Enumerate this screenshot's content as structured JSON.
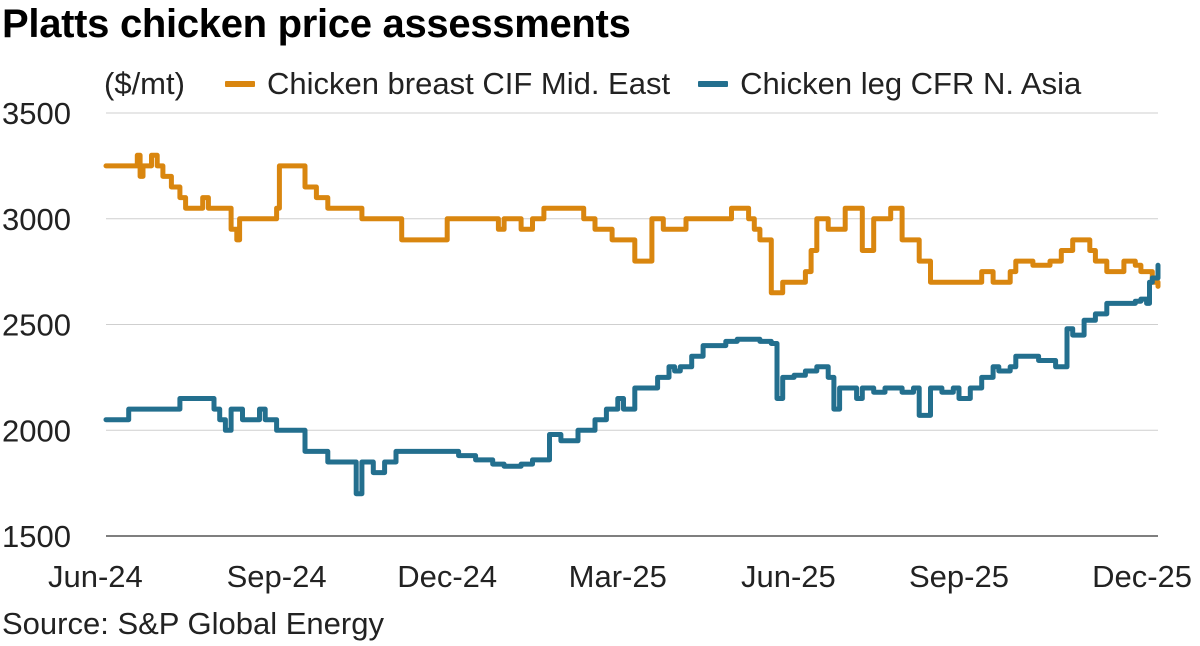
{
  "title": "Platts chicken price assessments",
  "source": "Source: S&P Global Energy",
  "chart_data": {
    "type": "line",
    "title": "Platts chicken price assessments",
    "ylabel": "($/mt)",
    "xlabel": "",
    "ylim": [
      1500,
      3500
    ],
    "yticks": [
      "3500",
      "3000",
      "2500",
      "2000",
      "1500"
    ],
    "ytick_values": [
      3500,
      3000,
      2500,
      2000,
      1500
    ],
    "xticks": [
      "Jun-24",
      "Sep-24",
      "Dec-24",
      "Mar-25",
      "Jun-25",
      "Sep-25",
      "Dec-25"
    ],
    "xtick_values": [
      0,
      3,
      6,
      9,
      12,
      15,
      18
    ],
    "grid": true,
    "legend": "top",
    "colors": {
      "breast": "#d9860f",
      "leg": "#236f8e"
    },
    "series": [
      {
        "name": "Chicken breast CIF Mid. East",
        "x": [
          0,
          0.5,
          0.55,
          0.6,
          0.65,
          0.7,
          0.8,
          0.9,
          1.0,
          1.15,
          1.3,
          1.4,
          1.5,
          1.7,
          1.8,
          2.0,
          2.2,
          2.3,
          2.35,
          2.6,
          2.9,
          3.0,
          3.05,
          3.4,
          3.5,
          3.7,
          3.9,
          4.2,
          4.5,
          5.0,
          5.2,
          5.5,
          6.0,
          6.5,
          6.8,
          6.9,
          7.0,
          7.3,
          7.5,
          7.7,
          7.9,
          8.3,
          8.4,
          8.6,
          8.9,
          9.0,
          9.3,
          9.6,
          9.8,
          10.2,
          10.7,
          11.0,
          11.3,
          11.4,
          11.5,
          11.7,
          11.8,
          11.9,
          12.3,
          12.4,
          12.5,
          12.7,
          13.0,
          13.3,
          13.5,
          13.8,
          14.0,
          14.1,
          14.3,
          14.5,
          14.8,
          15.0,
          15.4,
          15.6,
          15.9,
          16.0,
          16.3,
          16.6,
          16.8,
          17.0,
          17.2,
          17.3,
          17.4,
          17.6,
          17.9,
          18.05,
          18.1,
          18.2,
          18.4,
          18.5
        ],
        "values": [
          3250,
          3250,
          3300,
          3200,
          3250,
          3250,
          3300,
          3250,
          3200,
          3150,
          3100,
          3050,
          3050,
          3100,
          3050,
          3050,
          2950,
          2900,
          3000,
          3000,
          3000,
          3050,
          3250,
          3250,
          3150,
          3100,
          3050,
          3050,
          3000,
          3000,
          2900,
          2900,
          3000,
          3000,
          3000,
          2950,
          3000,
          2950,
          3000,
          3050,
          3050,
          3050,
          3000,
          2950,
          2900,
          2900,
          2800,
          3000,
          2950,
          3000,
          3000,
          3050,
          3000,
          2950,
          2900,
          2650,
          2650,
          2700,
          2750,
          2850,
          3000,
          2950,
          3050,
          2850,
          3000,
          3050,
          2900,
          2900,
          2800,
          2700,
          2700,
          2700,
          2750,
          2700,
          2750,
          2800,
          2780,
          2800,
          2850,
          2900,
          2900,
          2850,
          2800,
          2750,
          2800,
          2800,
          2780,
          2750,
          2700,
          2680
        ]
      },
      {
        "name": "Chicken leg CFR N. Asia",
        "x": [
          0,
          0.3,
          0.4,
          0.8,
          1.0,
          1.3,
          1.5,
          1.7,
          1.9,
          2.0,
          2.1,
          2.2,
          2.4,
          2.7,
          2.8,
          3.0,
          3.2,
          3.5,
          3.7,
          3.9,
          4.1,
          4.3,
          4.4,
          4.5,
          4.7,
          4.8,
          4.9,
          5.1,
          5.3,
          5.5,
          5.6,
          5.9,
          6.2,
          6.5,
          6.8,
          7.0,
          7.3,
          7.5,
          7.8,
          8.0,
          8.3,
          8.6,
          8.8,
          9.0,
          9.1,
          9.3,
          9.4,
          9.7,
          9.9,
          10.0,
          10.1,
          10.3,
          10.5,
          10.9,
          11.1,
          11.5,
          11.7,
          11.8,
          11.9,
          12.1,
          12.3,
          12.5,
          12.7,
          12.8,
          12.9,
          13.0,
          13.1,
          13.2,
          13.3,
          13.5,
          13.7,
          14.0,
          14.2,
          14.3,
          14.5,
          14.7,
          14.9,
          15.0,
          15.2,
          15.4,
          15.6,
          15.7,
          15.9,
          16.0,
          16.2,
          16.4,
          16.7,
          16.9,
          17.0,
          17.2,
          17.4,
          17.6,
          17.8,
          18.0,
          18.1,
          18.2,
          18.3,
          18.35,
          18.4,
          18.5
        ],
        "values": [
          2050,
          2050,
          2100,
          2100,
          2100,
          2150,
          2150,
          2150,
          2100,
          2050,
          2000,
          2100,
          2050,
          2100,
          2050,
          2000,
          2000,
          1900,
          1900,
          1850,
          1850,
          1850,
          1700,
          1850,
          1800,
          1800,
          1850,
          1900,
          1900,
          1900,
          1900,
          1900,
          1880,
          1860,
          1840,
          1830,
          1840,
          1860,
          1980,
          1950,
          2000,
          2050,
          2100,
          2150,
          2100,
          2200,
          2200,
          2250,
          2300,
          2280,
          2300,
          2350,
          2400,
          2420,
          2430,
          2420,
          2410,
          2150,
          2250,
          2260,
          2280,
          2300,
          2250,
          2100,
          2200,
          2200,
          2200,
          2150,
          2200,
          2180,
          2200,
          2180,
          2200,
          2070,
          2200,
          2180,
          2200,
          2150,
          2200,
          2250,
          2300,
          2280,
          2300,
          2350,
          2350,
          2330,
          2300,
          2480,
          2450,
          2520,
          2550,
          2600,
          2600,
          2600,
          2610,
          2620,
          2600,
          2700,
          2720,
          2780
        ]
      }
    ]
  }
}
